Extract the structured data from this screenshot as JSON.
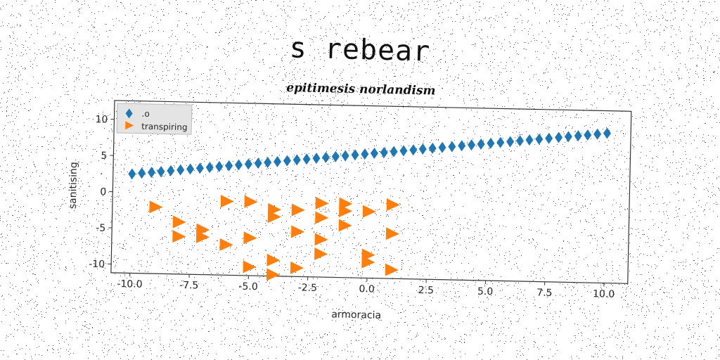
{
  "page": {
    "title": "s rebear"
  },
  "chart_data": {
    "type": "scatter",
    "title": "epitimesis norlandism",
    "xlabel": "armoracia",
    "ylabel": "sanitising",
    "xlim": [
      -10.8,
      11.0
    ],
    "ylim": [
      -11.2,
      12.6
    ],
    "xticks": [
      "-10.0",
      "-7.5",
      "-5.0",
      "-2.5",
      "0.0",
      "2.5",
      "5.0",
      "7.5",
      "10.0"
    ],
    "yticks": [
      "-10",
      "-5",
      "0",
      "5",
      "10"
    ],
    "grid": false,
    "legend_position": "top-left",
    "series": [
      {
        "name": ".o",
        "marker": "diamond",
        "color": "#1f77b4",
        "x": [
          -10.0,
          -9.59,
          -9.18,
          -8.78,
          -8.37,
          -7.96,
          -7.55,
          -7.14,
          -6.73,
          -6.33,
          -5.92,
          -5.51,
          -5.1,
          -4.69,
          -4.29,
          -3.88,
          -3.47,
          -3.06,
          -2.65,
          -2.24,
          -1.84,
          -1.43,
          -1.02,
          -0.61,
          -0.2,
          0.2,
          0.61,
          1.02,
          1.43,
          1.84,
          2.24,
          2.65,
          3.06,
          3.47,
          3.88,
          4.29,
          4.69,
          5.1,
          5.51,
          5.92,
          6.33,
          6.73,
          7.14,
          7.55,
          7.96,
          8.37,
          8.78,
          9.18,
          9.59,
          10.0
        ],
        "y": [
          2.5,
          2.64,
          2.78,
          2.92,
          3.06,
          3.2,
          3.35,
          3.49,
          3.63,
          3.78,
          3.92,
          4.06,
          4.2,
          4.35,
          4.49,
          4.63,
          4.78,
          4.92,
          5.06,
          5.2,
          5.35,
          5.49,
          5.63,
          5.78,
          5.92,
          6.06,
          6.2,
          6.35,
          6.49,
          6.63,
          6.78,
          6.92,
          7.06,
          7.2,
          7.35,
          7.49,
          7.63,
          7.78,
          7.92,
          8.06,
          8.2,
          8.35,
          8.49,
          8.63,
          8.78,
          8.92,
          9.06,
          9.2,
          9.35,
          9.5
        ]
      },
      {
        "name": "transpiring",
        "marker": "triangle-right",
        "color": "#ff7f0e",
        "x": [
          -9.0,
          -8.0,
          -8.0,
          -7.0,
          -7.0,
          -6.0,
          -6.0,
          -5.0,
          -5.0,
          -5.0,
          -4.0,
          -4.0,
          -4.0,
          -4.0,
          -3.0,
          -3.0,
          -3.0,
          -2.0,
          -2.0,
          -2.0,
          -2.0,
          -1.0,
          -1.0,
          -1.0,
          0.0,
          0.0,
          0.0,
          1.0,
          1.0,
          1.0
        ],
        "y": [
          -2.0,
          -4.0,
          -6.0,
          -5.0,
          -6.0,
          -1.0,
          -7.0,
          -1.0,
          -6.0,
          -10.0,
          -2.0,
          -3.0,
          -9.0,
          -11.0,
          -2.0,
          -5.0,
          -10.0,
          -1.0,
          -3.0,
          -6.0,
          -8.0,
          -1.0,
          -2.0,
          -4.0,
          -2.0,
          -8.0,
          -9.0,
          -1.0,
          -5.0,
          -10.0
        ]
      }
    ]
  }
}
